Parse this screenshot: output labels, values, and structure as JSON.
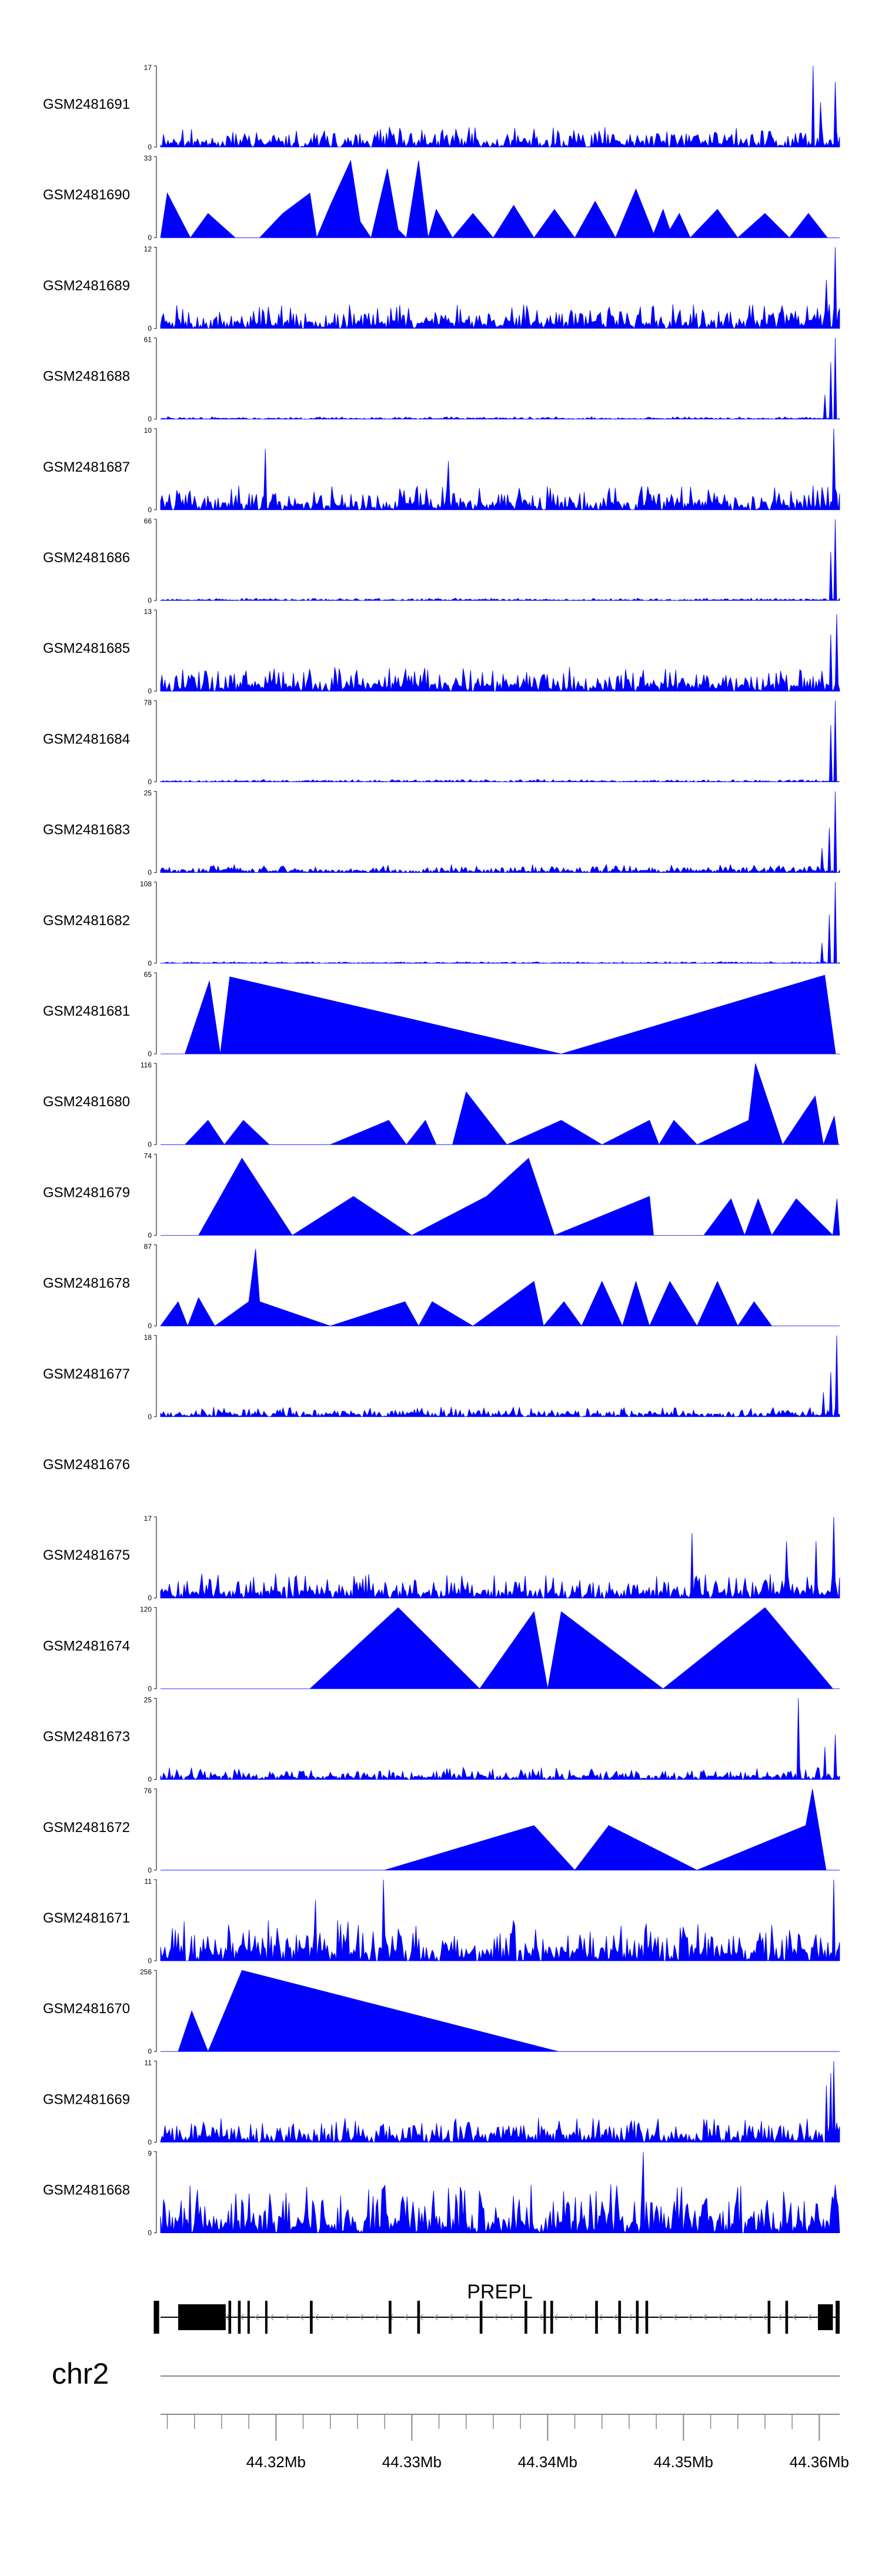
{
  "colors": {
    "signal": "#0000ff",
    "gene": "#000000",
    "axis": "#888888",
    "text": "#000000"
  },
  "chart_data": {
    "type": "area",
    "chromosome": "chr2",
    "x_range_mb": [
      44.3115,
      44.3615
    ],
    "tracks": [
      {
        "sample": "GSM2481691",
        "ymax": 17,
        "profile": "dense",
        "seed": 11,
        "level": 0.25,
        "peaks": [
          [
            44.3595,
            1.0
          ],
          [
            44.3612,
            0.8
          ],
          [
            44.3601,
            0.55
          ]
        ]
      },
      {
        "sample": "GSM2481690",
        "ymax": 33,
        "profile": "sparse",
        "points": [
          [
            44.3115,
            0
          ],
          [
            44.312,
            0.55
          ],
          [
            44.3137,
            0
          ],
          [
            44.315,
            0.3
          ],
          [
            44.317,
            0
          ],
          [
            44.3188,
            0
          ],
          [
            44.3205,
            0.3
          ],
          [
            44.3225,
            0.55
          ],
          [
            44.323,
            0
          ],
          [
            44.324,
            0.4
          ],
          [
            44.3255,
            0.95
          ],
          [
            44.3262,
            0.2
          ],
          [
            44.327,
            0
          ],
          [
            44.3282,
            0.85
          ],
          [
            44.329,
            0.1
          ],
          [
            44.3296,
            0
          ],
          [
            44.3305,
            0.95
          ],
          [
            44.3312,
            0
          ],
          [
            44.3318,
            0.35
          ],
          [
            44.333,
            0
          ],
          [
            44.3345,
            0.3
          ],
          [
            44.336,
            0
          ],
          [
            44.3375,
            0.4
          ],
          [
            44.339,
            0
          ],
          [
            44.3405,
            0.35
          ],
          [
            44.342,
            0
          ],
          [
            44.3435,
            0.45
          ],
          [
            44.345,
            0
          ],
          [
            44.3465,
            0.6
          ],
          [
            44.3478,
            0.05
          ],
          [
            44.3485,
            0.35
          ],
          [
            44.349,
            0.1
          ],
          [
            44.3497,
            0.3
          ],
          [
            44.3505,
            0
          ],
          [
            44.3525,
            0.35
          ],
          [
            44.354,
            0
          ],
          [
            44.356,
            0.3
          ],
          [
            44.3578,
            0
          ],
          [
            44.3592,
            0.3
          ],
          [
            44.3606,
            0
          ],
          [
            44.3615,
            0
          ]
        ]
      },
      {
        "sample": "GSM2481689",
        "ymax": 12,
        "profile": "dense",
        "seed": 23,
        "level": 0.3,
        "peaks": [
          [
            44.3612,
            1.0
          ],
          [
            44.3605,
            0.6
          ]
        ]
      },
      {
        "sample": "GSM2481688",
        "ymax": 61,
        "profile": "dense",
        "seed": 31,
        "level": 0.03,
        "peaks": [
          [
            44.3612,
            1.0
          ],
          [
            44.3608,
            0.7
          ],
          [
            44.3604,
            0.3
          ]
        ]
      },
      {
        "sample": "GSM2481687",
        "ymax": 10,
        "profile": "dense",
        "seed": 41,
        "level": 0.3,
        "peaks": [
          [
            44.3611,
            1.0
          ],
          [
            44.3192,
            0.75
          ],
          [
            44.3327,
            0.6
          ]
        ]
      },
      {
        "sample": "GSM2481686",
        "ymax": 66,
        "profile": "dense",
        "seed": 53,
        "level": 0.03,
        "peaks": [
          [
            44.3612,
            1.0
          ],
          [
            44.3608,
            0.6
          ]
        ]
      },
      {
        "sample": "GSM2481685",
        "ymax": 13,
        "profile": "dense",
        "seed": 61,
        "level": 0.3,
        "peaks": [
          [
            44.3613,
            0.95
          ],
          [
            44.3608,
            0.7
          ]
        ]
      },
      {
        "sample": "GSM2481684",
        "ymax": 78,
        "profile": "dense",
        "seed": 71,
        "level": 0.03,
        "peaks": [
          [
            44.3612,
            1.0
          ],
          [
            44.3608,
            0.7
          ]
        ]
      },
      {
        "sample": "GSM2481683",
        "ymax": 25,
        "profile": "dense",
        "seed": 83,
        "level": 0.1,
        "peaks": [
          [
            44.3612,
            1.0
          ],
          [
            44.3607,
            0.55
          ],
          [
            44.3602,
            0.3
          ]
        ]
      },
      {
        "sample": "GSM2481682",
        "ymax": 108,
        "profile": "dense",
        "seed": 97,
        "level": 0.02,
        "peaks": [
          [
            44.3612,
            1.0
          ],
          [
            44.3607,
            0.6
          ],
          [
            44.3602,
            0.25
          ]
        ]
      },
      {
        "sample": "GSM2481681",
        "ymax": 65,
        "profile": "sparse",
        "points": [
          [
            44.3115,
            0
          ],
          [
            44.3133,
            0
          ],
          [
            44.3151,
            0.9
          ],
          [
            44.3159,
            0
          ],
          [
            44.3166,
            0.95
          ],
          [
            44.341,
            0
          ],
          [
            44.3604,
            0.97
          ],
          [
            44.3612,
            0
          ],
          [
            44.3615,
            0
          ]
        ]
      },
      {
        "sample": "GSM2481680",
        "ymax": 116,
        "profile": "sparse",
        "points": [
          [
            44.3115,
            0
          ],
          [
            44.3133,
            0
          ],
          [
            44.315,
            0.3
          ],
          [
            44.3162,
            0
          ],
          [
            44.3176,
            0.3
          ],
          [
            44.3195,
            0
          ],
          [
            44.324,
            0
          ],
          [
            44.3283,
            0.3
          ],
          [
            44.3296,
            0
          ],
          [
            44.331,
            0.3
          ],
          [
            44.3318,
            0
          ],
          [
            44.333,
            0
          ],
          [
            44.334,
            0.65
          ],
          [
            44.337,
            0
          ],
          [
            44.341,
            0.3
          ],
          [
            44.344,
            0
          ],
          [
            44.3475,
            0.3
          ],
          [
            44.3482,
            0
          ],
          [
            44.3493,
            0.3
          ],
          [
            44.351,
            0
          ],
          [
            44.3548,
            0.3
          ],
          [
            44.3553,
            1.0
          ],
          [
            44.3573,
            0
          ],
          [
            44.3597,
            0.6
          ],
          [
            44.3603,
            0
          ],
          [
            44.3611,
            0.35
          ],
          [
            44.3614,
            0
          ],
          [
            44.3615,
            0
          ]
        ]
      },
      {
        "sample": "GSM2481679",
        "ymax": 74,
        "profile": "sparse",
        "points": [
          [
            44.3115,
            0
          ],
          [
            44.3143,
            0
          ],
          [
            44.3175,
            0.95
          ],
          [
            44.3212,
            0
          ],
          [
            44.3257,
            0.48
          ],
          [
            44.33,
            0
          ],
          [
            44.3355,
            0.48
          ],
          [
            44.3386,
            0.95
          ],
          [
            44.3405,
            0
          ],
          [
            44.3475,
            0.48
          ],
          [
            44.3478,
            0
          ],
          [
            44.3515,
            0
          ],
          [
            44.3535,
            0.45
          ],
          [
            44.3545,
            0
          ],
          [
            44.3555,
            0.45
          ],
          [
            44.3565,
            0
          ],
          [
            44.3583,
            0.45
          ],
          [
            44.361,
            0
          ],
          [
            44.3613,
            0.45
          ],
          [
            44.3615,
            0
          ]
        ]
      },
      {
        "sample": "GSM2481678",
        "ymax": 87,
        "profile": "sparse",
        "points": [
          [
            44.3115,
            0
          ],
          [
            44.3128,
            0.3
          ],
          [
            44.3135,
            0
          ],
          [
            44.3143,
            0.35
          ],
          [
            44.3155,
            0
          ],
          [
            44.318,
            0.3
          ],
          [
            44.3185,
            0.95
          ],
          [
            44.3188,
            0.3
          ],
          [
            44.324,
            0
          ],
          [
            44.3295,
            0.3
          ],
          [
            44.3305,
            0
          ],
          [
            44.3315,
            0.3
          ],
          [
            44.3345,
            0
          ],
          [
            44.339,
            0.55
          ],
          [
            44.3397,
            0
          ],
          [
            44.3412,
            0.3
          ],
          [
            44.3425,
            0
          ],
          [
            44.344,
            0.55
          ],
          [
            44.3455,
            0
          ],
          [
            44.3465,
            0.55
          ],
          [
            44.3475,
            0
          ],
          [
            44.349,
            0.55
          ],
          [
            44.351,
            0
          ],
          [
            44.3525,
            0.55
          ],
          [
            44.354,
            0
          ],
          [
            44.3552,
            0.3
          ],
          [
            44.3565,
            0
          ],
          [
            44.3578,
            0
          ],
          [
            44.3615,
            0
          ]
        ]
      },
      {
        "sample": "GSM2481677",
        "ymax": 18,
        "profile": "dense",
        "seed": 107,
        "level": 0.12,
        "peaks": [
          [
            44.3613,
            1.0
          ],
          [
            44.3609,
            0.55
          ],
          [
            44.3603,
            0.3
          ]
        ]
      },
      {
        "sample": "GSM2481676",
        "ymax": null,
        "profile": "empty"
      },
      {
        "sample": "GSM2481675",
        "ymax": 17,
        "profile": "dense",
        "seed": 127,
        "level": 0.3,
        "peaks": [
          [
            44.3611,
            1.0
          ],
          [
            44.3598,
            0.7
          ],
          [
            44.3576,
            0.7
          ],
          [
            44.3506,
            0.8
          ]
        ]
      },
      {
        "sample": "GSM2481674",
        "ymax": 120,
        "profile": "sparse",
        "points": [
          [
            44.3115,
            0
          ],
          [
            44.3225,
            0
          ],
          [
            44.329,
            1.0
          ],
          [
            44.335,
            0
          ],
          [
            44.339,
            0.95
          ],
          [
            44.34,
            0
          ],
          [
            44.341,
            0.95
          ],
          [
            44.3485,
            0
          ],
          [
            44.356,
            1.0
          ],
          [
            44.361,
            0
          ],
          [
            44.3615,
            0
          ]
        ]
      },
      {
        "sample": "GSM2481673",
        "ymax": 25,
        "profile": "dense",
        "seed": 139,
        "level": 0.15,
        "peaks": [
          [
            44.3585,
            1.0
          ],
          [
            44.3612,
            0.55
          ],
          [
            44.3604,
            0.4
          ]
        ]
      },
      {
        "sample": "GSM2481672",
        "ymax": 76,
        "profile": "sparse",
        "points": [
          [
            44.3115,
            0
          ],
          [
            44.328,
            0
          ],
          [
            44.339,
            0.55
          ],
          [
            44.342,
            0
          ],
          [
            44.3445,
            0.55
          ],
          [
            44.351,
            0
          ],
          [
            44.359,
            0.55
          ],
          [
            44.3595,
            1.0
          ],
          [
            44.3605,
            0
          ],
          [
            44.3615,
            0
          ]
        ]
      },
      {
        "sample": "GSM2481671",
        "ymax": 11,
        "profile": "dense",
        "seed": 151,
        "level": 0.5,
        "peaks": [
          [
            44.3611,
            1.0
          ],
          [
            44.3279,
            1.0
          ],
          [
            44.3229,
            0.75
          ]
        ]
      },
      {
        "sample": "GSM2481670",
        "ymax": 256,
        "profile": "sparse",
        "points": [
          [
            44.3115,
            0
          ],
          [
            44.3128,
            0
          ],
          [
            44.3138,
            0.5
          ],
          [
            44.315,
            0
          ],
          [
            44.3175,
            1.0
          ],
          [
            44.3408,
            0
          ],
          [
            44.3615,
            0
          ]
        ]
      },
      {
        "sample": "GSM2481669",
        "ymax": 11,
        "profile": "dense",
        "seed": 163,
        "level": 0.3,
        "peaks": [
          [
            44.3611,
            1.0
          ],
          [
            44.3605,
            0.7
          ],
          [
            44.3608,
            0.85
          ]
        ]
      },
      {
        "sample": "GSM2481668",
        "ymax": 9,
        "profile": "dense",
        "seed": 173,
        "level": 0.6,
        "peaks": [
          [
            44.347,
            1.0
          ]
        ]
      }
    ],
    "gene": {
      "name": "PREPL",
      "span": [
        44.3115,
        44.3615
      ],
      "utr_blocks": [
        [
          44.3128,
          44.3163
        ],
        [
          44.3599,
          44.361
        ]
      ],
      "exons": [
        [
          44.311,
          44.3114
        ],
        [
          44.3165,
          44.3167
        ],
        [
          44.3172,
          44.3174
        ],
        [
          44.3179,
          44.318
        ],
        [
          44.3192,
          44.3193
        ],
        [
          44.3225,
          44.3227
        ],
        [
          44.3283,
          44.3285
        ],
        [
          44.3304,
          44.3306
        ],
        [
          44.335,
          44.3352
        ],
        [
          44.3383,
          44.3385
        ],
        [
          44.3397,
          44.3398
        ],
        [
          44.3402,
          44.3404
        ],
        [
          44.3435,
          44.3437
        ],
        [
          44.3452,
          44.3454
        ],
        [
          44.3465,
          44.3467
        ],
        [
          44.3472,
          44.3474
        ],
        [
          44.3562,
          44.3564
        ],
        [
          44.3575,
          44.3577
        ],
        [
          44.3612,
          44.3615
        ]
      ]
    },
    "axis": {
      "tick_labels": [
        "44.32Mb",
        "44.33Mb",
        "44.34Mb",
        "44.35Mb",
        "44.36Mb"
      ],
      "tick_values": [
        44.32,
        44.33,
        44.34,
        44.35,
        44.36
      ],
      "minor_step_mb": 0.002
    }
  }
}
